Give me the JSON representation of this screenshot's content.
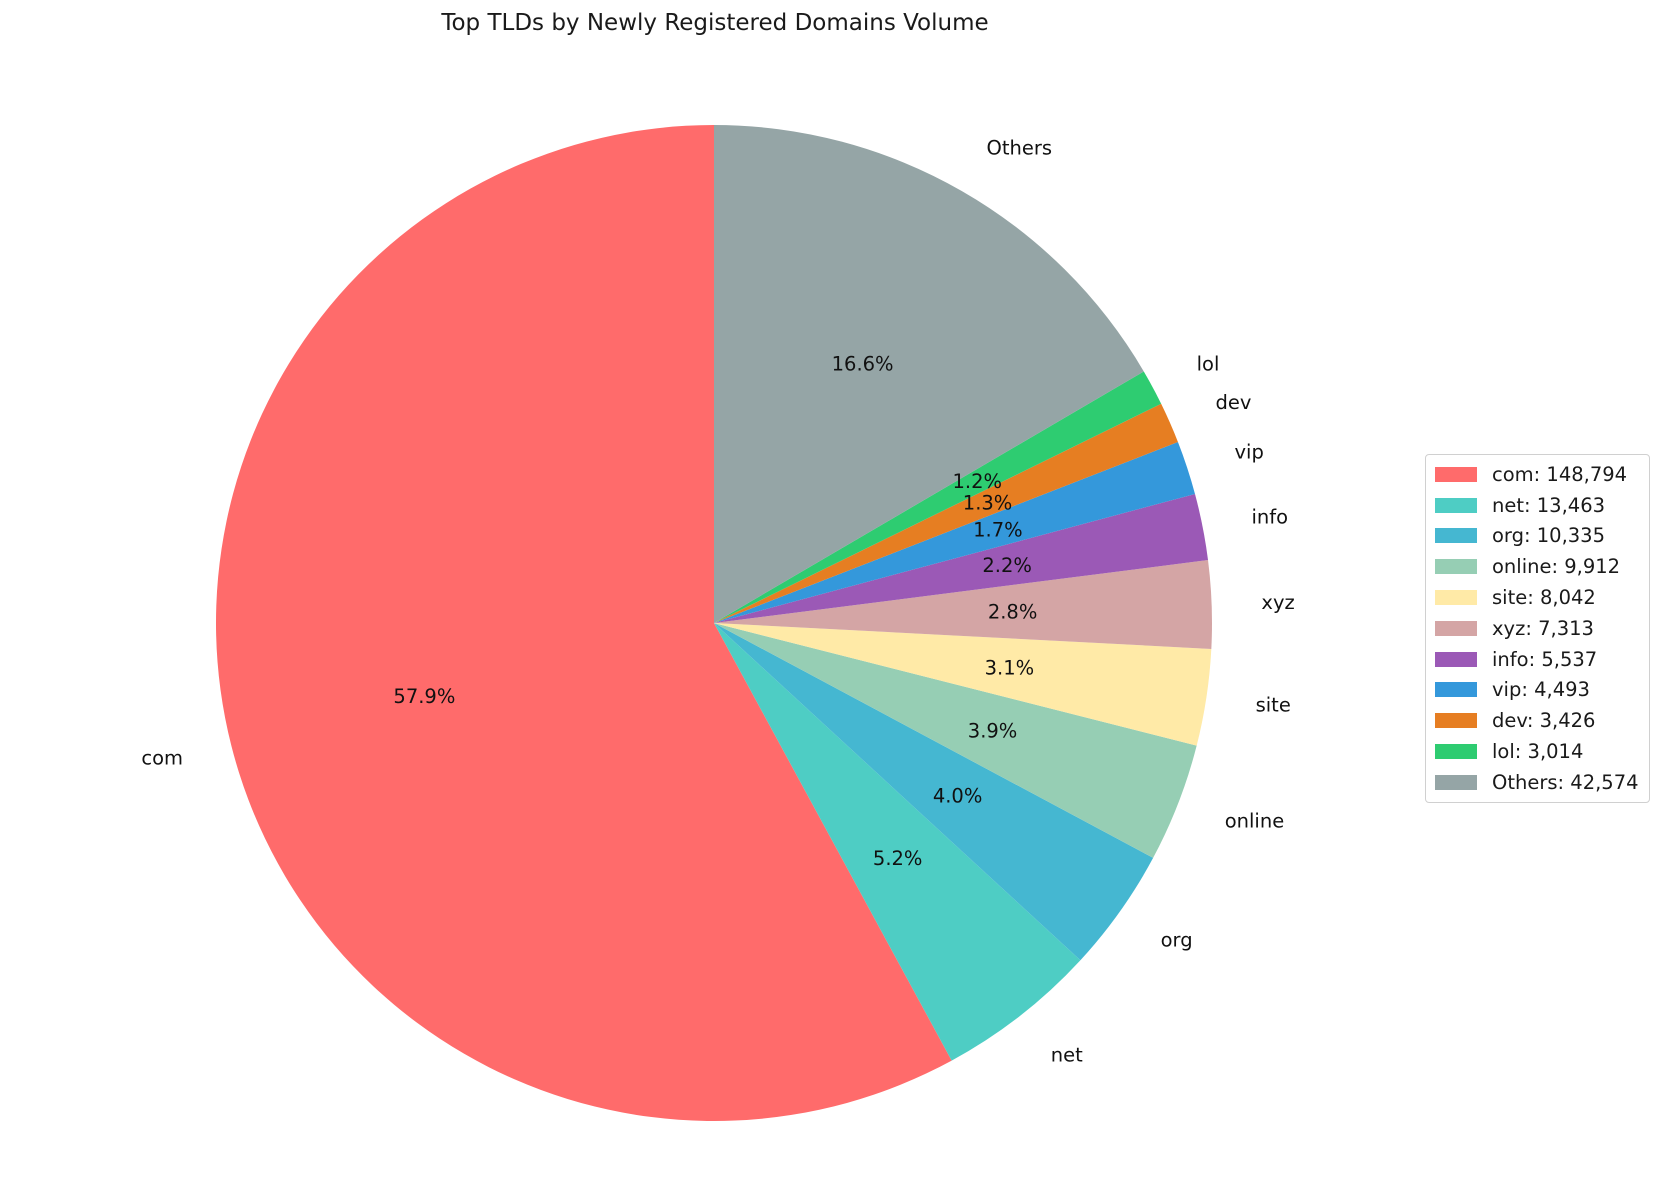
{
  "chart_data": {
    "type": "pie",
    "title": "Top TLDs by Newly Registered Domains Volume",
    "start_angle_deg": 90,
    "direction": "counterclockwise",
    "legend_position": "right",
    "slices": [
      {
        "label": "com",
        "value": 148794,
        "percent_label": "57.9%",
        "legend_label": "com: 148,794",
        "color": "#FF6B6B"
      },
      {
        "label": "net",
        "value": 13463,
        "percent_label": "5.2%",
        "legend_label": "net: 13,463",
        "color": "#4ECDC4"
      },
      {
        "label": "org",
        "value": 10335,
        "percent_label": "4.0%",
        "legend_label": "org: 10,335",
        "color": "#45B7D1"
      },
      {
        "label": "online",
        "value": 9912,
        "percent_label": "3.9%",
        "legend_label": "online: 9,912",
        "color": "#96CEB4"
      },
      {
        "label": "site",
        "value": 8042,
        "percent_label": "3.1%",
        "legend_label": "site: 8,042",
        "color": "#FFEAA7"
      },
      {
        "label": "xyz",
        "value": 7313,
        "percent_label": "2.8%",
        "legend_label": "xyz: 7,313",
        "color": "#D4A5A5"
      },
      {
        "label": "info",
        "value": 5537,
        "percent_label": "2.2%",
        "legend_label": "info: 5,537",
        "color": "#9B59B6"
      },
      {
        "label": "vip",
        "value": 4493,
        "percent_label": "1.7%",
        "legend_label": "vip: 4,493",
        "color": "#3498DB"
      },
      {
        "label": "dev",
        "value": 3426,
        "percent_label": "1.3%",
        "legend_label": "dev: 3,426",
        "color": "#E67E22"
      },
      {
        "label": "lol",
        "value": 3014,
        "percent_label": "1.2%",
        "legend_label": "lol: 3,014",
        "color": "#2ECC71"
      },
      {
        "label": "Others",
        "value": 42574,
        "percent_label": "16.6%",
        "legend_label": "Others: 42,574",
        "color": "#95A5A6"
      }
    ]
  }
}
